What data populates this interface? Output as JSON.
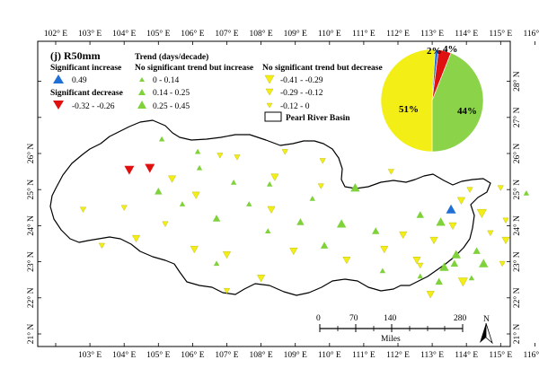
{
  "map": {
    "panel_label": "(j) R50mm",
    "trend_header": "Trend (days/decade)",
    "lon_ticks": [
      "102° E",
      "103° E",
      "104° E",
      "105° E",
      "106° E",
      "107° E",
      "108° E",
      "109° E",
      "110° E",
      "111° E",
      "112° E",
      "113° E",
      "114° E",
      "115° E",
      "116° E"
    ],
    "lat_ticks": [
      "21° N",
      "22° N",
      "23° N",
      "24° N",
      "25° N",
      "26° N",
      "27° N",
      "28° N"
    ],
    "legend": {
      "sig_increase_title": "Significant increase",
      "sig_increase_value": "0.49",
      "sig_decrease_title": "Significant decrease",
      "sig_decrease_value": "-0.32 - -0.26",
      "ns_increase_title": "No significant trend but increase",
      "ns_increase_values": [
        "0 - 0.14",
        "0.14 - 0.25",
        "0.25 - 0.45"
      ],
      "ns_decrease_title": "No significant trend but decrease",
      "ns_decrease_values": [
        "-0.41 - -0.29",
        "-0.29 - -0.12",
        "-0.12 - 0"
      ],
      "basin_label": "Pearl River Basin",
      "colors": {
        "sig_increase": "#1f6fd6",
        "sig_decrease": "#e01010",
        "ns_increase": "#7fd23a",
        "ns_decrease": "#f2ee16"
      }
    },
    "pie": {
      "slices": [
        {
          "label": "2%",
          "percent": 2,
          "color": "#1f6fd6"
        },
        {
          "label": "4%",
          "percent": 4,
          "color": "#e01010"
        },
        {
          "label": "44%",
          "percent": 44,
          "color": "#8bd44a"
        },
        {
          "label": "51%",
          "percent": 51,
          "color": "#f2ee16"
        }
      ]
    },
    "scale_bar": {
      "labels": [
        "0",
        "70",
        "140",
        "280"
      ],
      "unit": "Miles"
    },
    "north_label": "N",
    "stations": [
      {
        "lon": 104.15,
        "lat": 25.55,
        "cls": "sig_dec",
        "size": 1
      },
      {
        "lon": 104.75,
        "lat": 25.6,
        "cls": "sig_dec",
        "size": 1
      },
      {
        "lon": 113.55,
        "lat": 24.45,
        "cls": "sig_inc",
        "size": 1
      },
      {
        "lon": 105.1,
        "lat": 26.4,
        "cls": "ns_inc",
        "size": 1
      },
      {
        "lon": 106.15,
        "lat": 26.05,
        "cls": "ns_inc",
        "size": 1
      },
      {
        "lon": 106.2,
        "lat": 25.6,
        "cls": "ns_inc",
        "size": 1
      },
      {
        "lon": 107.2,
        "lat": 25.2,
        "cls": "ns_inc",
        "size": 1
      },
      {
        "lon": 105.0,
        "lat": 24.95,
        "cls": "ns_inc",
        "size": 2
      },
      {
        "lon": 108.25,
        "lat": 25.15,
        "cls": "ns_inc",
        "size": 1
      },
      {
        "lon": 107.65,
        "lat": 24.6,
        "cls": "ns_inc",
        "size": 1
      },
      {
        "lon": 110.75,
        "lat": 25.05,
        "cls": "ns_inc",
        "size": 3
      },
      {
        "lon": 109.5,
        "lat": 24.75,
        "cls": "ns_inc",
        "size": 1
      },
      {
        "lon": 106.7,
        "lat": 24.2,
        "cls": "ns_inc",
        "size": 2
      },
      {
        "lon": 105.7,
        "lat": 24.6,
        "cls": "ns_inc",
        "size": 1
      },
      {
        "lon": 109.15,
        "lat": 24.1,
        "cls": "ns_inc",
        "size": 2
      },
      {
        "lon": 110.35,
        "lat": 24.05,
        "cls": "ns_inc",
        "size": 3
      },
      {
        "lon": 108.2,
        "lat": 23.85,
        "cls": "ns_inc",
        "size": 1
      },
      {
        "lon": 109.85,
        "lat": 23.45,
        "cls": "ns_inc",
        "size": 2
      },
      {
        "lon": 111.35,
        "lat": 23.85,
        "cls": "ns_inc",
        "size": 2
      },
      {
        "lon": 112.65,
        "lat": 24.3,
        "cls": "ns_inc",
        "size": 2
      },
      {
        "lon": 113.25,
        "lat": 24.1,
        "cls": "ns_inc",
        "size": 3
      },
      {
        "lon": 113.7,
        "lat": 23.2,
        "cls": "ns_inc",
        "size": 3
      },
      {
        "lon": 113.35,
        "lat": 22.85,
        "cls": "ns_inc",
        "size": 3
      },
      {
        "lon": 114.3,
        "lat": 23.3,
        "cls": "ns_inc",
        "size": 2
      },
      {
        "lon": 113.65,
        "lat": 22.95,
        "cls": "ns_inc",
        "size": 2
      },
      {
        "lon": 114.5,
        "lat": 22.95,
        "cls": "ns_inc",
        "size": 3
      },
      {
        "lon": 112.65,
        "lat": 22.6,
        "cls": "ns_inc",
        "size": 1
      },
      {
        "lon": 113.2,
        "lat": 22.45,
        "cls": "ns_inc",
        "size": 2
      },
      {
        "lon": 114.15,
        "lat": 22.55,
        "cls": "ns_inc",
        "size": 1
      },
      {
        "lon": 106.7,
        "lat": 22.95,
        "cls": "ns_inc",
        "size": 1
      },
      {
        "lon": 111.55,
        "lat": 22.75,
        "cls": "ns_inc",
        "size": 1
      },
      {
        "lon": 115.75,
        "lat": 24.9,
        "cls": "ns_inc",
        "size": 1
      },
      {
        "lon": 104.0,
        "lat": 24.5,
        "cls": "ns_dec",
        "size": 1
      },
      {
        "lon": 105.4,
        "lat": 25.3,
        "cls": "ns_dec",
        "size": 2
      },
      {
        "lon": 106.1,
        "lat": 24.85,
        "cls": "ns_dec",
        "size": 2
      },
      {
        "lon": 106.8,
        "lat": 25.95,
        "cls": "ns_dec",
        "size": 1
      },
      {
        "lon": 107.3,
        "lat": 25.9,
        "cls": "ns_dec",
        "size": 1
      },
      {
        "lon": 108.4,
        "lat": 25.35,
        "cls": "ns_dec",
        "size": 2
      },
      {
        "lon": 109.8,
        "lat": 25.8,
        "cls": "ns_dec",
        "size": 1
      },
      {
        "lon": 108.7,
        "lat": 26.05,
        "cls": "ns_dec",
        "size": 1
      },
      {
        "lon": 109.75,
        "lat": 25.1,
        "cls": "ns_dec",
        "size": 1
      },
      {
        "lon": 108.3,
        "lat": 24.45,
        "cls": "ns_dec",
        "size": 2
      },
      {
        "lon": 111.8,
        "lat": 25.5,
        "cls": "ns_dec",
        "size": 1
      },
      {
        "lon": 105.2,
        "lat": 24.05,
        "cls": "ns_dec",
        "size": 1
      },
      {
        "lon": 106.05,
        "lat": 23.35,
        "cls": "ns_dec",
        "size": 2
      },
      {
        "lon": 107.0,
        "lat": 23.2,
        "cls": "ns_dec",
        "size": 2
      },
      {
        "lon": 103.35,
        "lat": 23.45,
        "cls": "ns_dec",
        "size": 1
      },
      {
        "lon": 104.35,
        "lat": 23.65,
        "cls": "ns_dec",
        "size": 2
      },
      {
        "lon": 102.8,
        "lat": 24.45,
        "cls": "ns_dec",
        "size": 1
      },
      {
        "lon": 107.0,
        "lat": 22.2,
        "cls": "ns_dec",
        "size": 1
      },
      {
        "lon": 108.0,
        "lat": 22.55,
        "cls": "ns_dec",
        "size": 2
      },
      {
        "lon": 108.95,
        "lat": 23.3,
        "cls": "ns_dec",
        "size": 2
      },
      {
        "lon": 110.5,
        "lat": 23.05,
        "cls": "ns_dec",
        "size": 2
      },
      {
        "lon": 111.6,
        "lat": 23.35,
        "cls": "ns_dec",
        "size": 2
      },
      {
        "lon": 112.15,
        "lat": 23.75,
        "cls": "ns_dec",
        "size": 2
      },
      {
        "lon": 112.55,
        "lat": 23.05,
        "cls": "ns_dec",
        "size": 2
      },
      {
        "lon": 113.05,
        "lat": 23.6,
        "cls": "ns_dec",
        "size": 2
      },
      {
        "lon": 113.6,
        "lat": 24.0,
        "cls": "ns_dec",
        "size": 2
      },
      {
        "lon": 113.85,
        "lat": 24.7,
        "cls": "ns_dec",
        "size": 2
      },
      {
        "lon": 114.45,
        "lat": 24.35,
        "cls": "ns_dec",
        "size": 3
      },
      {
        "lon": 114.1,
        "lat": 25.0,
        "cls": "ns_dec",
        "size": 1
      },
      {
        "lon": 115.0,
        "lat": 25.05,
        "cls": "ns_dec",
        "size": 1
      },
      {
        "lon": 114.7,
        "lat": 23.8,
        "cls": "ns_dec",
        "size": 1
      },
      {
        "lon": 115.15,
        "lat": 24.15,
        "cls": "ns_dec",
        "size": 1
      },
      {
        "lon": 115.15,
        "lat": 23.6,
        "cls": "ns_dec",
        "size": 2
      },
      {
        "lon": 115.05,
        "lat": 22.95,
        "cls": "ns_dec",
        "size": 1
      },
      {
        "lon": 112.95,
        "lat": 22.1,
        "cls": "ns_dec",
        "size": 2
      },
      {
        "lon": 113.9,
        "lat": 22.45,
        "cls": "ns_dec",
        "size": 3
      },
      {
        "lon": 112.65,
        "lat": 22.9,
        "cls": "ns_dec",
        "size": 1
      }
    ]
  }
}
